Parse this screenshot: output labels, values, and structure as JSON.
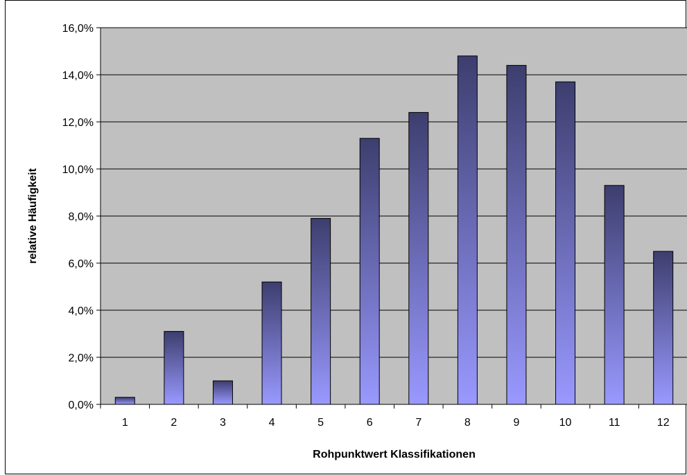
{
  "chart_data": {
    "type": "bar",
    "title": "",
    "xlabel": "Rohpunktwert Klassifikationen",
    "ylabel": "relative Häufigkeit",
    "categories": [
      "1",
      "2",
      "3",
      "4",
      "5",
      "6",
      "7",
      "8",
      "9",
      "10",
      "11",
      "12"
    ],
    "values": [
      0.3,
      3.1,
      1.0,
      5.2,
      7.9,
      11.3,
      12.4,
      14.8,
      14.4,
      13.7,
      9.3,
      6.5
    ],
    "ylim": [
      0,
      16
    ],
    "yticks": [
      "0,0%",
      "2,0%",
      "4,0%",
      "6,0%",
      "8,0%",
      "10,0%",
      "12,0%",
      "14,0%",
      "16,0%"
    ],
    "grid": true,
    "legend": "none",
    "colors": {
      "plot_background": "#c0c0c0",
      "bar_top": "#3d3e6e",
      "bar_bottom": "#9999ff",
      "bar_outline": "#000000",
      "gridline": "#000000"
    }
  }
}
